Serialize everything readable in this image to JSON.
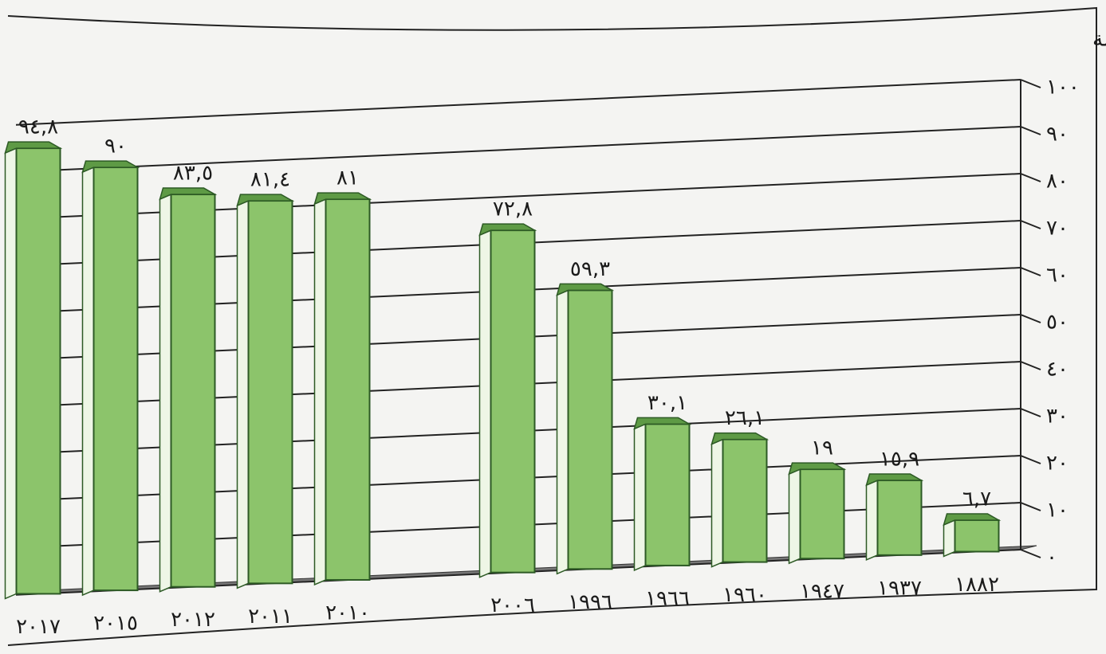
{
  "chart_data": {
    "type": "bar",
    "y_axis_label": "مليون نسمة",
    "categories": [
      "١٨٨٢",
      "١٩٣٧",
      "١٩٤٧",
      "١٩٦٠",
      "١٩٦٦",
      "١٩٩٦",
      "٢٠٠٦",
      "٢٠١٠",
      "٢٠١١",
      "٢٠١٢",
      "٢٠١٥",
      "٢٠١٧"
    ],
    "values": [
      6.7,
      15.9,
      19,
      26.1,
      30.1,
      59.3,
      72.8,
      81,
      81.4,
      83.5,
      90,
      94.8
    ],
    "value_labels": [
      "٦,٧",
      "١٥,٩",
      "١٩",
      "٢٦,١",
      "٣٠,١",
      "٥٩,٣",
      "٧٢,٨",
      "٨١",
      "٨١,٤",
      "٨٣,٥",
      "٩٠",
      "٩٤,٨"
    ],
    "color": "#8cc46b",
    "ylim": [
      0,
      100
    ],
    "yticks": [
      {
        "value": 0,
        "label": "٠"
      },
      {
        "value": 10,
        "label": "١٠"
      },
      {
        "value": 20,
        "label": "٢٠"
      },
      {
        "value": 30,
        "label": "٣٠"
      },
      {
        "value": 40,
        "label": "٤٠"
      },
      {
        "value": 50,
        "label": "٥٠"
      },
      {
        "value": 60,
        "label": "٦٠"
      },
      {
        "value": 70,
        "label": "٧٠"
      },
      {
        "value": 80,
        "label": "٨٠"
      },
      {
        "value": 90,
        "label": "٩٠"
      },
      {
        "value": 100,
        "label": "١٠٠"
      }
    ],
    "grid": true
  }
}
